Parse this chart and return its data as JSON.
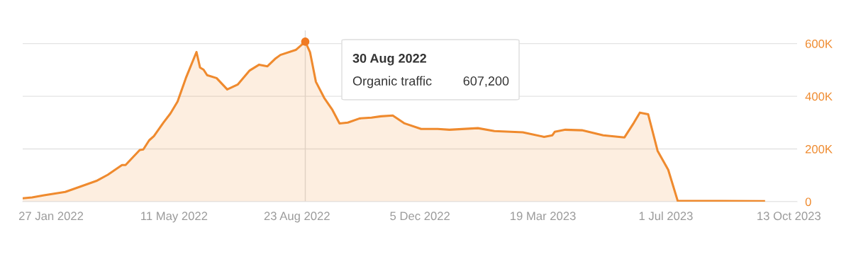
{
  "chart_data": {
    "type": "area",
    "x": [
      "2022-01-03",
      "2022-01-11",
      "2022-01-21",
      "2022-02-08",
      "2022-02-22",
      "2022-03-07",
      "2022-03-16",
      "2022-03-28",
      "2022-03-31",
      "2022-04-12",
      "2022-04-15",
      "2022-04-20",
      "2022-04-24",
      "2022-05-02",
      "2022-05-08",
      "2022-05-14",
      "2022-05-21",
      "2022-05-30",
      "2022-06-02",
      "2022-06-05",
      "2022-06-08",
      "2022-06-16",
      "2022-06-25",
      "2022-07-04",
      "2022-07-14",
      "2022-07-22",
      "2022-07-29",
      "2022-08-05",
      "2022-08-09",
      "2022-08-22",
      "2022-08-30",
      "2022-09-03",
      "2022-09-08",
      "2022-09-15",
      "2022-09-22",
      "2022-09-28",
      "2022-10-05",
      "2022-10-15",
      "2022-10-25",
      "2022-11-02",
      "2022-11-12",
      "2022-11-22",
      "2022-12-06",
      "2022-12-20",
      "2022-12-30",
      "2023-01-23",
      "2023-02-06",
      "2023-03-02",
      "2023-03-20",
      "2023-03-27",
      "2023-03-29",
      "2023-04-07",
      "2023-04-21",
      "2023-05-09",
      "2023-05-27",
      "2023-06-04",
      "2023-06-09",
      "2023-06-16",
      "2023-06-24",
      "2023-07-03",
      "2023-07-11",
      "2023-09-22"
    ],
    "series": [
      {
        "color": "#ef8a2e",
        "values": [
          13000,
          16000,
          24000,
          37000,
          59000,
          80000,
          102000,
          139000,
          139000,
          196000,
          198000,
          233000,
          249000,
          300000,
          335000,
          380000,
          469000,
          568000,
          509000,
          501000,
          480000,
          469000,
          426000,
          445000,
          498000,
          520000,
          514000,
          544000,
          557000,
          576000,
          607200,
          568000,
          455000,
          394000,
          348000,
          297000,
          300000,
          316000,
          319000,
          324000,
          327000,
          297000,
          276000,
          276000,
          273000,
          279000,
          268000,
          263000,
          246000,
          252000,
          265000,
          273000,
          271000,
          252000,
          244000,
          300000,
          338000,
          332000,
          193000,
          121000,
          3000,
          2000
        ]
      },
      {
        "type": "scatter",
        "color": "#f07a22",
        "marker": "circle",
        "x": [
          "2022-08-30"
        ],
        "values": [
          607200
        ]
      }
    ],
    "xlim": [
      "2022-01-03",
      "2023-10-20"
    ],
    "xticks": [
      {
        "value": "2022-01-27",
        "label": "27 Jan 2022"
      },
      {
        "value": "2022-05-11",
        "label": "11 May 2022"
      },
      {
        "value": "2022-08-23",
        "label": "23 Aug 2022"
      },
      {
        "value": "2022-12-05",
        "label": "5 Dec 2022"
      },
      {
        "value": "2023-03-19",
        "label": "19 Mar 2023"
      },
      {
        "value": "2023-07-01",
        "label": "1 Jul 2023"
      },
      {
        "value": "2023-10-13",
        "label": "13 Oct 2023"
      }
    ],
    "ylim": [
      0,
      650000
    ],
    "yticks": [
      0,
      {
        "value": 200000,
        "label": "200K"
      },
      {
        "value": 400000,
        "label": "400K"
      },
      {
        "value": 600000,
        "label": "600K"
      }
    ],
    "grid": "y",
    "ref_lines": [
      {
        "axis": "x",
        "value": "2022-08-30",
        "color": "#dddddd"
      }
    ],
    "annotations": [
      "30 Aug 2022",
      "Organic traffic",
      "607,200"
    ]
  }
}
